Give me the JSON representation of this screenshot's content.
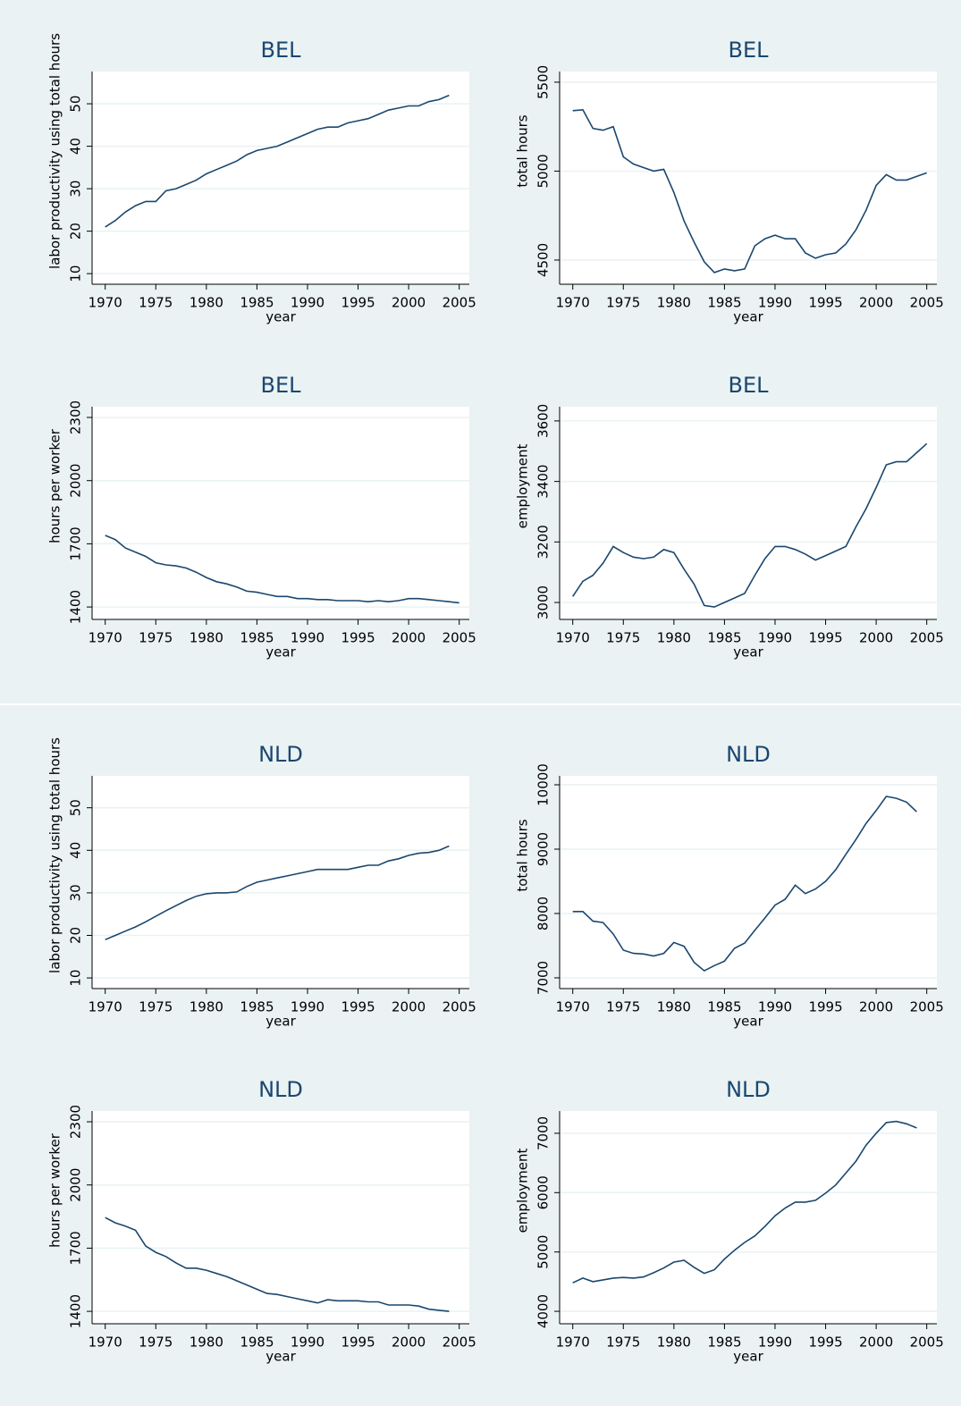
{
  "chart_data": [
    {
      "type": "line",
      "title": "BEL",
      "xlabel": "year",
      "ylabel": "labor productivity using total hours",
      "color": "#1a476f",
      "grid": true,
      "xlim": [
        1968.7,
        2006
      ],
      "xticks": [
        1970,
        1975,
        1980,
        1985,
        1990,
        1995,
        2000,
        2005
      ],
      "ylim": [
        7.5,
        57.6
      ],
      "yticks": [
        10,
        20,
        30,
        40,
        50
      ],
      "x": [
        1970,
        1971,
        1972,
        1973,
        1974,
        1975,
        1976,
        1977,
        1978,
        1979,
        1980,
        1981,
        1982,
        1983,
        1984,
        1985,
        1986,
        1987,
        1988,
        1989,
        1990,
        1991,
        1992,
        1993,
        1994,
        1995,
        1996,
        1997,
        1998,
        1999,
        2000,
        2001,
        2002,
        2003,
        2004
      ],
      "values": [
        21,
        22.5,
        24.5,
        26,
        27,
        27,
        29.5,
        30,
        31,
        32,
        33.5,
        34.5,
        35.5,
        36.5,
        38,
        39,
        39.5,
        40,
        41,
        42,
        43,
        44,
        44.5,
        44.5,
        45.5,
        46,
        46.5,
        47.5,
        48.5,
        49,
        49.5,
        49.5,
        50.5,
        51,
        52
      ]
    },
    {
      "type": "line",
      "title": "BEL",
      "xlabel": "year",
      "ylabel": "total hours",
      "color": "#1a476f",
      "grid": true,
      "xlim": [
        1968.7,
        2006
      ],
      "xticks": [
        1970,
        1975,
        1980,
        1985,
        1990,
        1995,
        2000,
        2005
      ],
      "ylim": [
        4364,
        5560
      ],
      "yticks": [
        4500,
        5000,
        5500
      ],
      "x": [
        1970,
        1971,
        1972,
        1973,
        1974,
        1975,
        1976,
        1977,
        1978,
        1979,
        1980,
        1981,
        1982,
        1983,
        1984,
        1985,
        1986,
        1987,
        1988,
        1989,
        1990,
        1991,
        1992,
        1993,
        1994,
        1995,
        1996,
        1997,
        1998,
        1999,
        2000,
        2001,
        2002,
        2003,
        2004,
        2005
      ],
      "values": [
        5340,
        5345,
        5240,
        5230,
        5250,
        5080,
        5040,
        5020,
        5000,
        5010,
        4880,
        4720,
        4600,
        4490,
        4430,
        4450,
        4440,
        4450,
        4580,
        4620,
        4640,
        4620,
        4620,
        4540,
        4510,
        4530,
        4540,
        4590,
        4670,
        4780,
        4920,
        4980,
        4950,
        4950,
        4970,
        4990
      ]
    },
    {
      "type": "line",
      "title": "BEL",
      "xlabel": "year",
      "ylabel": "hours per worker",
      "color": "#1a476f",
      "grid": true,
      "xlim": [
        1968.7,
        2006
      ],
      "xticks": [
        1970,
        1975,
        1980,
        1985,
        1990,
        1995,
        2000,
        2005
      ],
      "ylim": [
        1341,
        2351
      ],
      "yticks": [
        1400,
        1700,
        2000,
        2300
      ],
      "x": [
        1970,
        1971,
        1972,
        1973,
        1974,
        1975,
        1976,
        1977,
        1978,
        1979,
        1980,
        1981,
        1982,
        1983,
        1984,
        1985,
        1986,
        1987,
        1988,
        1989,
        1990,
        1991,
        1992,
        1993,
        1994,
        1995,
        1996,
        1997,
        1998,
        1999,
        2000,
        2001,
        2002,
        2003,
        2004,
        2005
      ],
      "values": [
        1740,
        1720,
        1680,
        1660,
        1640,
        1610,
        1600,
        1595,
        1585,
        1565,
        1540,
        1520,
        1510,
        1495,
        1475,
        1470,
        1460,
        1450,
        1450,
        1440,
        1440,
        1435,
        1435,
        1430,
        1430,
        1430,
        1425,
        1430,
        1425,
        1430,
        1440,
        1440,
        1435,
        1430,
        1425,
        1420
      ]
    },
    {
      "type": "line",
      "title": "BEL",
      "xlabel": "year",
      "ylabel": "employment",
      "color": "#1a476f",
      "grid": true,
      "xlim": [
        1968.7,
        2006
      ],
      "xticks": [
        1970,
        1975,
        1980,
        1985,
        1990,
        1995,
        2000,
        2005
      ],
      "ylim": [
        2944,
        3647
      ],
      "yticks": [
        3000,
        3200,
        3400,
        3600
      ],
      "x": [
        1970,
        1971,
        1972,
        1973,
        1974,
        1975,
        1976,
        1977,
        1978,
        1979,
        1980,
        1981,
        1982,
        1983,
        1984,
        1985,
        1986,
        1987,
        1988,
        1989,
        1990,
        1991,
        1992,
        1993,
        1994,
        1995,
        1996,
        1997,
        1998,
        1999,
        2000,
        2001,
        2002,
        2003,
        2004,
        2005
      ],
      "values": [
        3020,
        3070,
        3090,
        3130,
        3185,
        3165,
        3150,
        3145,
        3150,
        3175,
        3165,
        3110,
        3060,
        2990,
        2985,
        3000,
        3015,
        3030,
        3090,
        3145,
        3185,
        3185,
        3175,
        3160,
        3140,
        3155,
        3170,
        3185,
        3250,
        3310,
        3380,
        3455,
        3465,
        3465,
        3495,
        3525
      ]
    },
    {
      "type": "line",
      "title": "NLD",
      "xlabel": "year",
      "ylabel": "labor productivity using total hours",
      "color": "#1a476f",
      "grid": true,
      "xlim": [
        1968.7,
        2006
      ],
      "xticks": [
        1970,
        1975,
        1980,
        1985,
        1990,
        1995,
        2000,
        2005
      ],
      "ylim": [
        7.5,
        57.5
      ],
      "yticks": [
        10,
        20,
        30,
        40,
        50
      ],
      "x": [
        1970,
        1971,
        1972,
        1973,
        1974,
        1975,
        1976,
        1977,
        1978,
        1979,
        1980,
        1981,
        1982,
        1983,
        1984,
        1985,
        1986,
        1987,
        1988,
        1989,
        1990,
        1991,
        1992,
        1993,
        1994,
        1995,
        1996,
        1997,
        1998,
        1999,
        2000,
        2001,
        2002,
        2003,
        2004
      ],
      "values": [
        19,
        20,
        21,
        22,
        23.2,
        24.5,
        25.8,
        27,
        28.2,
        29.2,
        29.8,
        30,
        30,
        30.2,
        31.5,
        32.5,
        33,
        33.5,
        34,
        34.5,
        35,
        35.5,
        35.5,
        35.5,
        35.5,
        36,
        36.5,
        36.5,
        37.5,
        38,
        38.8,
        39.3,
        39.5,
        40,
        41
      ]
    },
    {
      "type": "line",
      "title": "NLD",
      "xlabel": "year",
      "ylabel": "total hours",
      "color": "#1a476f",
      "grid": true,
      "xlim": [
        1968.7,
        2006
      ],
      "xticks": [
        1970,
        1975,
        1980,
        1985,
        1990,
        1995,
        2000,
        2005
      ],
      "ylim": [
        6833,
        10139
      ],
      "yticks": [
        7000,
        8000,
        9000,
        10000
      ],
      "x": [
        1970,
        1971,
        1972,
        1973,
        1974,
        1975,
        1976,
        1977,
        1978,
        1979,
        1980,
        1981,
        1982,
        1983,
        1984,
        1985,
        1986,
        1987,
        1988,
        1989,
        1990,
        1991,
        1992,
        1993,
        1994,
        1995,
        1996,
        1997,
        1998,
        1999,
        2000,
        2001,
        2002,
        2003,
        2004
      ],
      "values": [
        8030,
        8030,
        7880,
        7860,
        7680,
        7430,
        7380,
        7370,
        7340,
        7380,
        7550,
        7490,
        7240,
        7110,
        7190,
        7260,
        7460,
        7540,
        7740,
        7930,
        8130,
        8220,
        8440,
        8310,
        8380,
        8500,
        8680,
        8920,
        9150,
        9400,
        9600,
        9820,
        9790,
        9730,
        9580
      ]
    },
    {
      "type": "line",
      "title": "NLD",
      "xlabel": "year",
      "ylabel": "hours per worker",
      "color": "#1a476f",
      "grid": true,
      "xlim": [
        1968.7,
        2006
      ],
      "xticks": [
        1970,
        1975,
        1980,
        1985,
        1990,
        1995,
        2000,
        2005
      ],
      "ylim": [
        1341,
        2351
      ],
      "yticks": [
        1400,
        1700,
        2000,
        2300
      ],
      "x": [
        1970,
        1971,
        1972,
        1973,
        1974,
        1975,
        1976,
        1977,
        1978,
        1979,
        1980,
        1981,
        1982,
        1983,
        1984,
        1985,
        1986,
        1987,
        1988,
        1989,
        1990,
        1991,
        1992,
        1993,
        1994,
        1995,
        1996,
        1997,
        1998,
        1999,
        2000,
        2001,
        2002,
        2003,
        2004
      ],
      "values": [
        1845,
        1820,
        1805,
        1785,
        1710,
        1680,
        1660,
        1630,
        1605,
        1605,
        1595,
        1580,
        1565,
        1545,
        1525,
        1505,
        1485,
        1480,
        1470,
        1460,
        1450,
        1440,
        1455,
        1450,
        1450,
        1450,
        1445,
        1445,
        1430,
        1430,
        1430,
        1425,
        1410,
        1405,
        1400
      ]
    },
    {
      "type": "line",
      "title": "NLD",
      "xlabel": "year",
      "ylabel": "employment",
      "color": "#1a476f",
      "grid": true,
      "xlim": [
        1968.7,
        2006
      ],
      "xticks": [
        1970,
        1975,
        1980,
        1985,
        1990,
        1995,
        2000,
        2005
      ],
      "ylim": [
        3790,
        7375
      ],
      "yticks": [
        4000,
        5000,
        6000,
        7000
      ],
      "x": [
        1970,
        1971,
        1972,
        1973,
        1974,
        1975,
        1976,
        1977,
        1978,
        1979,
        1980,
        1981,
        1982,
        1983,
        1984,
        1985,
        1986,
        1987,
        1988,
        1989,
        1990,
        1991,
        1992,
        1993,
        1994,
        1995,
        1996,
        1997,
        1998,
        1999,
        2000,
        2001,
        2002,
        2003,
        2004
      ],
      "values": [
        4480,
        4560,
        4500,
        4530,
        4560,
        4570,
        4560,
        4580,
        4650,
        4730,
        4830,
        4860,
        4740,
        4640,
        4700,
        4880,
        5030,
        5160,
        5270,
        5430,
        5610,
        5740,
        5840,
        5840,
        5870,
        5990,
        6130,
        6330,
        6530,
        6800,
        7000,
        7180,
        7200,
        7160,
        7090
      ]
    }
  ]
}
